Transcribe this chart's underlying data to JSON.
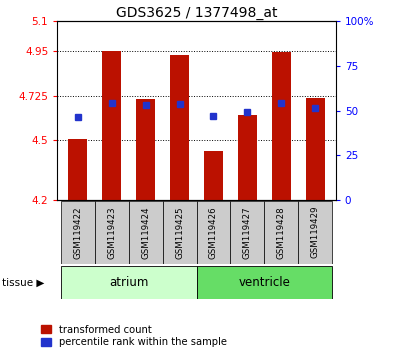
{
  "title": "GDS3625 / 1377498_at",
  "samples": [
    "GSM119422",
    "GSM119423",
    "GSM119424",
    "GSM119425",
    "GSM119426",
    "GSM119427",
    "GSM119428",
    "GSM119429"
  ],
  "red_values": [
    4.505,
    4.95,
    4.71,
    4.93,
    4.445,
    4.63,
    4.945,
    4.715
  ],
  "blue_values": [
    4.62,
    4.69,
    4.68,
    4.685,
    4.625,
    4.645,
    4.69,
    4.665
  ],
  "ymin": 4.2,
  "ymax": 5.1,
  "yticks": [
    4.2,
    4.5,
    4.725,
    4.95,
    5.1
  ],
  "ytick_labels": [
    "4.2",
    "4.5",
    "4.725",
    "4.95",
    "5.1"
  ],
  "right_yticks": [
    0,
    25,
    50,
    75,
    100
  ],
  "right_ytick_labels": [
    "0",
    "25",
    "50",
    "75",
    "100%"
  ],
  "bar_color": "#bb1100",
  "blue_color": "#2233cc",
  "atrium_label": "atrium",
  "ventricle_label": "ventricle",
  "tissue_label": "tissue",
  "legend_red": "transformed count",
  "legend_blue": "percentile rank within the sample",
  "bar_width": 0.55,
  "atrium_bg": "#ccffcc",
  "ventricle_bg": "#66dd66",
  "gray_color": "#cccccc"
}
